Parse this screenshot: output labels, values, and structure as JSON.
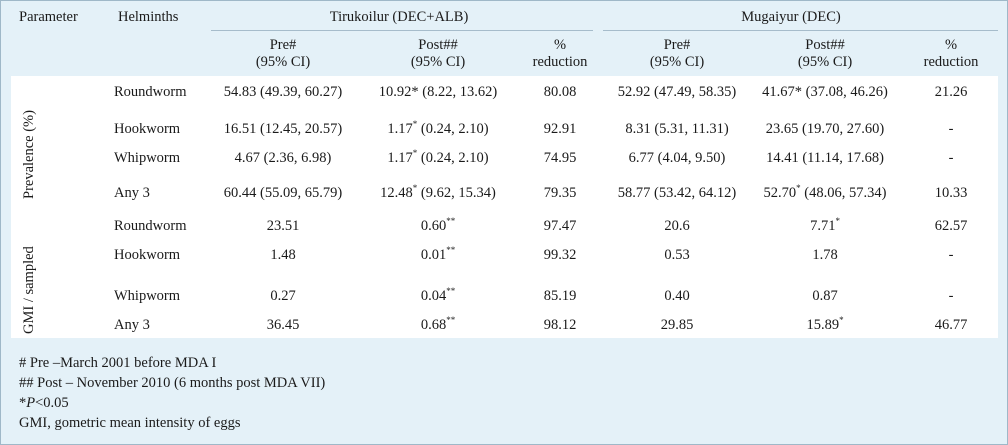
{
  "header": {
    "parameter": "Parameter",
    "helminths": "Helminths",
    "group1": "Tirukoilur (DEC+ALB)",
    "group2": "Mugaiyur (DEC)",
    "pre": "Pre#",
    "post": "Post##",
    "ci": "(95% CI)",
    "pct": "%",
    "reduction": "reduction"
  },
  "groups": {
    "prevalence": "Prevalence (%)",
    "gmi": "GMI / sampled"
  },
  "rows": [
    {
      "helminth": "Roundworm",
      "pre1": "54.83 (49.39, 60.27)",
      "post1": "10.92* (8.22, 13.62)",
      "post1_sup": "",
      "red1": "80.08",
      "pre2": "52.92 (47.49, 58.35)",
      "post2": "41.67* (37.08, 46.26)",
      "post2_sup": "",
      "red2": "21.26"
    },
    {
      "helminth": "Hookworm",
      "pre1": "16.51 (12.45, 20.57)",
      "post1": "1.17",
      "post1_sup": "*",
      "post1_rest": " (0.24, 2.10)",
      "red1": "92.91",
      "pre2": "8.31 (5.31, 11.31)",
      "post2": "23.65 (19.70, 27.60)",
      "post2_sup": "",
      "red2": "-"
    },
    {
      "helminth": "Whipworm",
      "pre1": "4.67 (2.36, 6.98)",
      "post1": "1.17",
      "post1_sup": "*",
      "post1_rest": " (0.24, 2.10)",
      "red1": "74.95",
      "pre2": "6.77 (4.04, 9.50)",
      "post2": "14.41 (11.14, 17.68)",
      "post2_sup": "",
      "red2": "-"
    },
    {
      "helminth": "Any 3",
      "pre1": "60.44 (55.09, 65.79)",
      "post1": "12.48",
      "post1_sup": "*",
      "post1_rest": " (9.62, 15.34)",
      "red1": "79.35",
      "pre2": "58.77 (53.42, 64.12)",
      "post2": "52.70",
      "post2_sup": "*",
      "post2_rest": " (48.06, 57.34)",
      "red2": "10.33"
    },
    {
      "helminth": "Roundworm",
      "pre1": "23.51",
      "post1": "0.60",
      "post1_sup": "**",
      "red1": "97.47",
      "pre2": "20.6",
      "post2": "7.71",
      "post2_sup": "*",
      "red2": "62.57"
    },
    {
      "helminth": "Hookworm",
      "pre1": "1.48",
      "post1": "0.01",
      "post1_sup": "**",
      "red1": "99.32",
      "pre2": "0.53",
      "post2": "1.78",
      "post2_sup": "",
      "red2": "-"
    },
    {
      "helminth": "Whipworm",
      "pre1": "0.27",
      "post1": "0.04",
      "post1_sup": "**",
      "red1": "85.19",
      "pre2": "0.40",
      "post2": "0.87",
      "post2_sup": "",
      "red2": "-"
    },
    {
      "helminth": "Any 3",
      "pre1": "36.45",
      "post1": "0.68",
      "post1_sup": "**",
      "red1": "98.12",
      "pre2": "29.85",
      "post2": "15.89",
      "post2_sup": "*",
      "red2": "46.77"
    }
  ],
  "footnotes": [
    "# Pre –March 2001 before MDA I",
    "## Post – November 2010 (6 months post MDA VII)",
    {
      "italic": "P",
      "rest": "<0.05"
    },
    "GMI, gometric mean intensity of eggs"
  ]
}
